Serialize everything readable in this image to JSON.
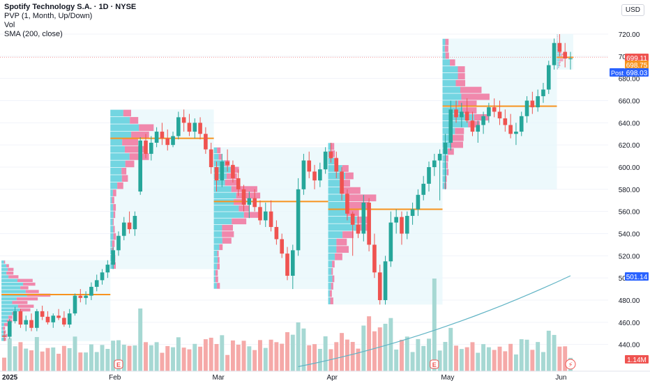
{
  "legend": {
    "title": "Spotify Technology S.A. · 1D · NYSE",
    "line2": "PVP (1, Month, Up/Down)",
    "line3": "Vol",
    "line4": "SMA (200, close)"
  },
  "currency": "USD",
  "colors": {
    "up": "#26a69a",
    "down": "#ef5350",
    "vol_up": "#a6d8d3",
    "vol_down": "#f5a9a8",
    "poc": "#f7931e",
    "sma": "#5fb3c4",
    "profile_up": "#5ccfdc",
    "profile_down": "#f06292",
    "box": "#e6f6fb"
  },
  "chart_data": {
    "type": "candlestick",
    "y_axis": {
      "ticks": [
        440,
        460,
        480,
        500,
        520,
        540,
        560,
        580,
        600,
        620,
        640,
        660,
        680,
        700,
        720
      ],
      "tick_labels": [
        "440.00",
        "460.00",
        "480.00",
        "500.00",
        "520.00",
        "540.00",
        "560.00",
        "580.00",
        "600.00",
        "620.00",
        "640.00",
        "660.00",
        "680.00",
        "700.00",
        "720.00"
      ]
    },
    "x_axis": {
      "labels": [
        "2025",
        "Feb",
        "Mar",
        "Apr",
        "May",
        "Jun"
      ],
      "label_dates": [
        "2025-01-02",
        "2025-02-03",
        "2025-03-03",
        "2025-04-01",
        "2025-05-01",
        "2025-06-02"
      ]
    },
    "candles": [
      [
        "2025-01-02",
        448,
        452,
        443,
        447
      ],
      [
        "2025-01-03",
        447,
        463,
        445,
        461
      ],
      [
        "2025-01-06",
        461,
        474,
        459,
        470
      ],
      [
        "2025-01-07",
        470,
        472,
        455,
        458
      ],
      [
        "2025-01-08",
        458,
        466,
        452,
        462
      ],
      [
        "2025-01-10",
        462,
        468,
        452,
        455
      ],
      [
        "2025-01-13",
        455,
        472,
        452,
        470
      ],
      [
        "2025-01-14",
        470,
        475,
        462,
        465
      ],
      [
        "2025-01-15",
        465,
        470,
        458,
        460
      ],
      [
        "2025-01-16",
        460,
        468,
        455,
        466
      ],
      [
        "2025-01-17",
        466,
        472,
        462,
        464
      ],
      [
        "2025-01-21",
        464,
        470,
        456,
        458
      ],
      [
        "2025-01-22",
        458,
        472,
        455,
        468
      ],
      [
        "2025-01-23",
        468,
        486,
        466,
        484
      ],
      [
        "2025-01-24",
        484,
        490,
        478,
        482
      ],
      [
        "2025-01-27",
        482,
        488,
        476,
        484
      ],
      [
        "2025-01-28",
        484,
        496,
        480,
        492
      ],
      [
        "2025-01-29",
        492,
        503,
        488,
        498
      ],
      [
        "2025-01-30",
        498,
        508,
        494,
        505
      ],
      [
        "2025-01-31",
        505,
        516,
        500,
        512
      ],
      [
        "2025-02-03",
        512,
        528,
        508,
        525
      ],
      [
        "2025-02-04",
        525,
        542,
        520,
        538
      ],
      [
        "2025-02-05",
        538,
        555,
        534,
        550
      ],
      [
        "2025-02-06",
        550,
        560,
        540,
        544
      ],
      [
        "2025-02-07",
        544,
        560,
        538,
        556
      ],
      [
        "2025-02-10",
        578,
        627,
        575,
        624
      ],
      [
        "2025-02-11",
        624,
        630,
        608,
        612
      ],
      [
        "2025-02-12",
        612,
        628,
        606,
        622
      ],
      [
        "2025-02-13",
        622,
        636,
        618,
        632
      ],
      [
        "2025-02-14",
        632,
        640,
        620,
        626
      ],
      [
        "2025-02-18",
        626,
        634,
        615,
        620
      ],
      [
        "2025-02-19",
        620,
        632,
        618,
        628
      ],
      [
        "2025-02-20",
        628,
        650,
        625,
        645
      ],
      [
        "2025-02-21",
        645,
        652,
        632,
        640
      ],
      [
        "2025-02-24",
        640,
        648,
        628,
        632
      ],
      [
        "2025-02-25",
        632,
        644,
        626,
        640
      ],
      [
        "2025-02-26",
        640,
        645,
        625,
        630
      ],
      [
        "2025-02-27",
        630,
        636,
        612,
        616
      ],
      [
        "2025-02-28",
        616,
        622,
        594,
        600
      ],
      [
        "2025-03-03",
        600,
        605,
        578,
        588
      ],
      [
        "2025-03-04",
        588,
        612,
        582,
        605
      ],
      [
        "2025-03-05",
        605,
        616,
        596,
        602
      ],
      [
        "2025-03-06",
        602,
        606,
        586,
        590
      ],
      [
        "2025-03-07",
        590,
        598,
        574,
        580
      ],
      [
        "2025-03-10",
        580,
        584,
        560,
        566
      ],
      [
        "2025-03-11",
        566,
        578,
        554,
        572
      ],
      [
        "2025-03-12",
        572,
        580,
        560,
        564
      ],
      [
        "2025-03-13",
        564,
        570,
        548,
        552
      ],
      [
        "2025-03-14",
        552,
        568,
        546,
        560
      ],
      [
        "2025-03-17",
        560,
        570,
        542,
        546
      ],
      [
        "2025-03-18",
        546,
        552,
        530,
        535
      ],
      [
        "2025-03-19",
        535,
        540,
        518,
        522
      ],
      [
        "2025-03-20",
        522,
        528,
        498,
        502
      ],
      [
        "2025-03-21",
        502,
        530,
        490,
        525
      ],
      [
        "2025-03-24",
        525,
        590,
        520,
        580
      ],
      [
        "2025-03-25",
        580,
        612,
        575,
        606
      ],
      [
        "2025-03-26",
        606,
        614,
        590,
        596
      ],
      [
        "2025-03-27",
        596,
        602,
        580,
        588
      ],
      [
        "2025-03-28",
        588,
        604,
        582,
        598
      ],
      [
        "2025-03-31",
        598,
        618,
        594,
        614
      ],
      [
        "2025-04-01",
        614,
        622,
        604,
        608
      ],
      [
        "2025-04-02",
        608,
        614,
        590,
        596
      ],
      [
        "2025-04-03",
        596,
        600,
        570,
        576
      ],
      [
        "2025-04-04",
        576,
        580,
        552,
        558
      ],
      [
        "2025-04-07",
        558,
        560,
        520,
        548
      ],
      [
        "2025-04-08",
        548,
        556,
        536,
        540
      ],
      [
        "2025-04-09",
        540,
        575,
        533,
        568
      ],
      [
        "2025-04-10",
        568,
        572,
        524,
        530
      ],
      [
        "2025-04-11",
        530,
        540,
        500,
        505
      ],
      [
        "2025-04-14",
        505,
        512,
        476,
        480
      ],
      [
        "2025-04-15",
        480,
        520,
        476,
        515
      ],
      [
        "2025-04-16",
        515,
        560,
        510,
        550
      ],
      [
        "2025-04-17",
        550,
        562,
        540,
        555
      ],
      [
        "2025-04-21",
        555,
        560,
        530,
        540
      ],
      [
        "2025-04-22",
        540,
        560,
        535,
        556
      ],
      [
        "2025-04-23",
        556,
        568,
        548,
        562
      ],
      [
        "2025-04-24",
        562,
        580,
        556,
        575
      ],
      [
        "2025-04-25",
        575,
        592,
        570,
        585
      ],
      [
        "2025-04-28",
        585,
        605,
        578,
        600
      ],
      [
        "2025-04-29",
        600,
        612,
        592,
        606
      ],
      [
        "2025-04-30",
        606,
        616,
        570,
        612
      ],
      [
        "2025-05-01",
        612,
        630,
        580,
        622
      ],
      [
        "2025-05-02",
        622,
        660,
        615,
        652
      ],
      [
        "2025-05-05",
        652,
        660,
        640,
        645
      ],
      [
        "2025-05-06",
        645,
        658,
        636,
        650
      ],
      [
        "2025-05-07",
        650,
        662,
        640,
        642
      ],
      [
        "2025-05-08",
        642,
        650,
        628,
        632
      ],
      [
        "2025-05-09",
        632,
        642,
        622,
        638
      ],
      [
        "2025-05-12",
        638,
        650,
        630,
        646
      ],
      [
        "2025-05-13",
        646,
        658,
        640,
        654
      ],
      [
        "2025-05-14",
        654,
        662,
        645,
        650
      ],
      [
        "2025-05-15",
        650,
        660,
        638,
        644
      ],
      [
        "2025-05-16",
        644,
        652,
        632,
        638
      ],
      [
        "2025-05-19",
        638,
        648,
        626,
        630
      ],
      [
        "2025-05-20",
        630,
        640,
        620,
        632
      ],
      [
        "2025-05-21",
        632,
        650,
        628,
        646
      ],
      [
        "2025-05-22",
        646,
        664,
        640,
        660
      ],
      [
        "2025-05-23",
        660,
        668,
        648,
        654
      ],
      [
        "2025-05-27",
        654,
        670,
        650,
        664
      ],
      [
        "2025-05-28",
        664,
        676,
        658,
        670
      ],
      [
        "2025-05-29",
        670,
        696,
        666,
        692
      ],
      [
        "2025-05-30",
        692,
        716,
        688,
        712
      ],
      [
        "2025-06-02",
        712,
        720,
        700,
        704
      ],
      [
        "2025-06-03",
        704,
        712,
        690,
        698
      ],
      [
        "2025-06-04",
        698,
        704,
        688,
        698
      ]
    ],
    "sma_200": {
      "start": [
        "2025-03-24",
        420
      ],
      "end": [
        "2025-06-04",
        502
      ]
    },
    "poc_levels": [
      {
        "from": "2025-01-02",
        "to": "2025-01-31",
        "price": 485
      },
      {
        "from": "2025-02-03",
        "to": "2025-02-28",
        "price": 626
      },
      {
        "from": "2025-03-03",
        "to": "2025-03-31",
        "price": 569
      },
      {
        "from": "2025-04-01",
        "to": "2025-04-30",
        "price": 562
      },
      {
        "from": "2025-05-01",
        "to": "2025-05-30",
        "price": 655
      },
      {
        "from": "2025-06-02",
        "to": "2025-06-04",
        "price": 699
      }
    ],
    "price_labels": [
      {
        "value": "699.11",
        "price": 699.11,
        "color": "#ef5350"
      },
      {
        "value": "698.75",
        "price": 698.75,
        "color": "#f7931e"
      },
      {
        "value": "698.03",
        "price": 698.03,
        "color": "#2962ff",
        "tag": "Post"
      },
      {
        "value": "501.14",
        "price": 501.14,
        "color": "#2962ff"
      },
      {
        "value": "1.14M",
        "price": 424,
        "color": "#ef5350"
      }
    ],
    "earnings_markers": [
      "2025-02-04",
      "2025-04-29"
    ]
  }
}
